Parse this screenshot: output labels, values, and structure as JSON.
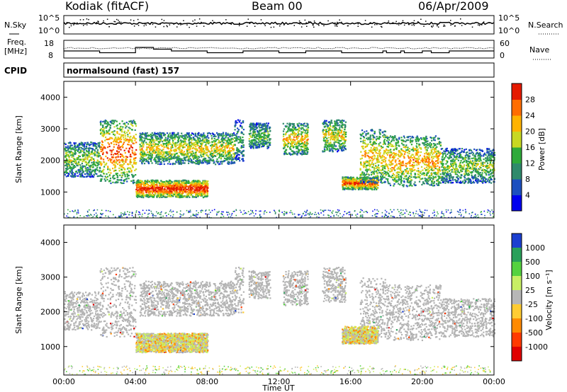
{
  "header": {
    "station": "Kodiak (fitACF)",
    "beam": "Beam 00",
    "date": "06/Apr/2009"
  },
  "meta_panels": {
    "nsky_label": "N.Sky",
    "nsky_ticks": [
      "10^5",
      "10^0"
    ],
    "nsearch_label": "N.Search",
    "freq_label_line1": "Freq.",
    "freq_label_line2": "[MHz]",
    "freq_ticks": [
      "18",
      "8"
    ],
    "nave_label": "Nave",
    "nave_ticks": [
      "60",
      "0"
    ],
    "cpid_label": "CPID",
    "cpid_value": "normalsound (fast) 157"
  },
  "chart_data": [
    {
      "type": "heatmap",
      "name": "power",
      "ylabel": "Slant Range [km]",
      "xlabel": "Time UT",
      "xlim": [
        0,
        24
      ],
      "ylim": [
        180,
        4500
      ],
      "y_ticks": [
        1000,
        2000,
        3000,
        4000
      ],
      "colorbar_label": "Power [dB]",
      "colorbar_ticks": [
        "4",
        "8",
        "12",
        "16",
        "20",
        "24",
        "28"
      ],
      "colorbar_colors": [
        "#0000ee",
        "#1c4fbf",
        "#2f8a6b",
        "#2faa3a",
        "#c8d823",
        "#ffb300",
        "#ff6d00",
        "#e51a00"
      ],
      "echo_regions": [
        {
          "t0": 0.0,
          "t1": 2.0,
          "r0": 1500,
          "r1": 2600,
          "level": 0.45
        },
        {
          "t0": 2.0,
          "t1": 4.0,
          "r0": 1300,
          "r1": 3300,
          "level": 0.75
        },
        {
          "t0": 4.0,
          "t1": 8.0,
          "r0": 850,
          "r1": 1400,
          "level": 0.85
        },
        {
          "t0": 4.2,
          "t1": 9.5,
          "r0": 1900,
          "r1": 2900,
          "level": 0.55
        },
        {
          "t0": 9.5,
          "t1": 10.0,
          "r0": 2000,
          "r1": 3300,
          "level": 0.35
        },
        {
          "t0": 10.3,
          "t1": 11.5,
          "r0": 2400,
          "r1": 3200,
          "level": 0.4
        },
        {
          "t0": 12.2,
          "t1": 13.6,
          "r0": 2200,
          "r1": 3200,
          "level": 0.6
        },
        {
          "t0": 14.4,
          "t1": 15.7,
          "r0": 2300,
          "r1": 3300,
          "level": 0.55
        },
        {
          "t0": 15.5,
          "t1": 17.5,
          "r0": 1100,
          "r1": 1500,
          "level": 0.75
        },
        {
          "t0": 16.5,
          "t1": 18.0,
          "r0": 1300,
          "r1": 3000,
          "level": 0.6
        },
        {
          "t0": 18.0,
          "t1": 21.0,
          "r0": 1200,
          "r1": 2800,
          "level": 0.65
        },
        {
          "t0": 21.0,
          "t1": 24.0,
          "r0": 1300,
          "r1": 2400,
          "level": 0.45
        }
      ]
    },
    {
      "type": "heatmap",
      "name": "velocity",
      "ylabel": "Slant Range [km]",
      "xlabel": "Time UT",
      "xlim": [
        0,
        24
      ],
      "ylim": [
        180,
        4500
      ],
      "y_ticks": [
        1000,
        2000,
        3000,
        4000
      ],
      "x_ticks": [
        "00:00",
        "04:00",
        "08:00",
        "12:00",
        "16:00",
        "20:00",
        "00:00"
      ],
      "colorbar_label": "Velocity [m s⁻¹]",
      "colorbar_ticks": [
        "1000",
        "500",
        "100",
        "25",
        "-25",
        "-100",
        "-500",
        "-1000"
      ],
      "colorbar_colors": [
        "#1b3fd0",
        "#2aa05a",
        "#55d23f",
        "#c8ef64",
        "#b7b7b7",
        "#ffcc33",
        "#ff8a00",
        "#ff3a00",
        "#e00000"
      ],
      "ground_scatter_color": "#b4b4b4",
      "echo_regions": [
        {
          "t0": 4.0,
          "t1": 8.0,
          "r0": 850,
          "r1": 1400,
          "level": 0.3
        },
        {
          "t0": 15.5,
          "t1": 17.5,
          "r0": 1100,
          "r1": 1600,
          "level": 0.25
        }
      ]
    }
  ]
}
